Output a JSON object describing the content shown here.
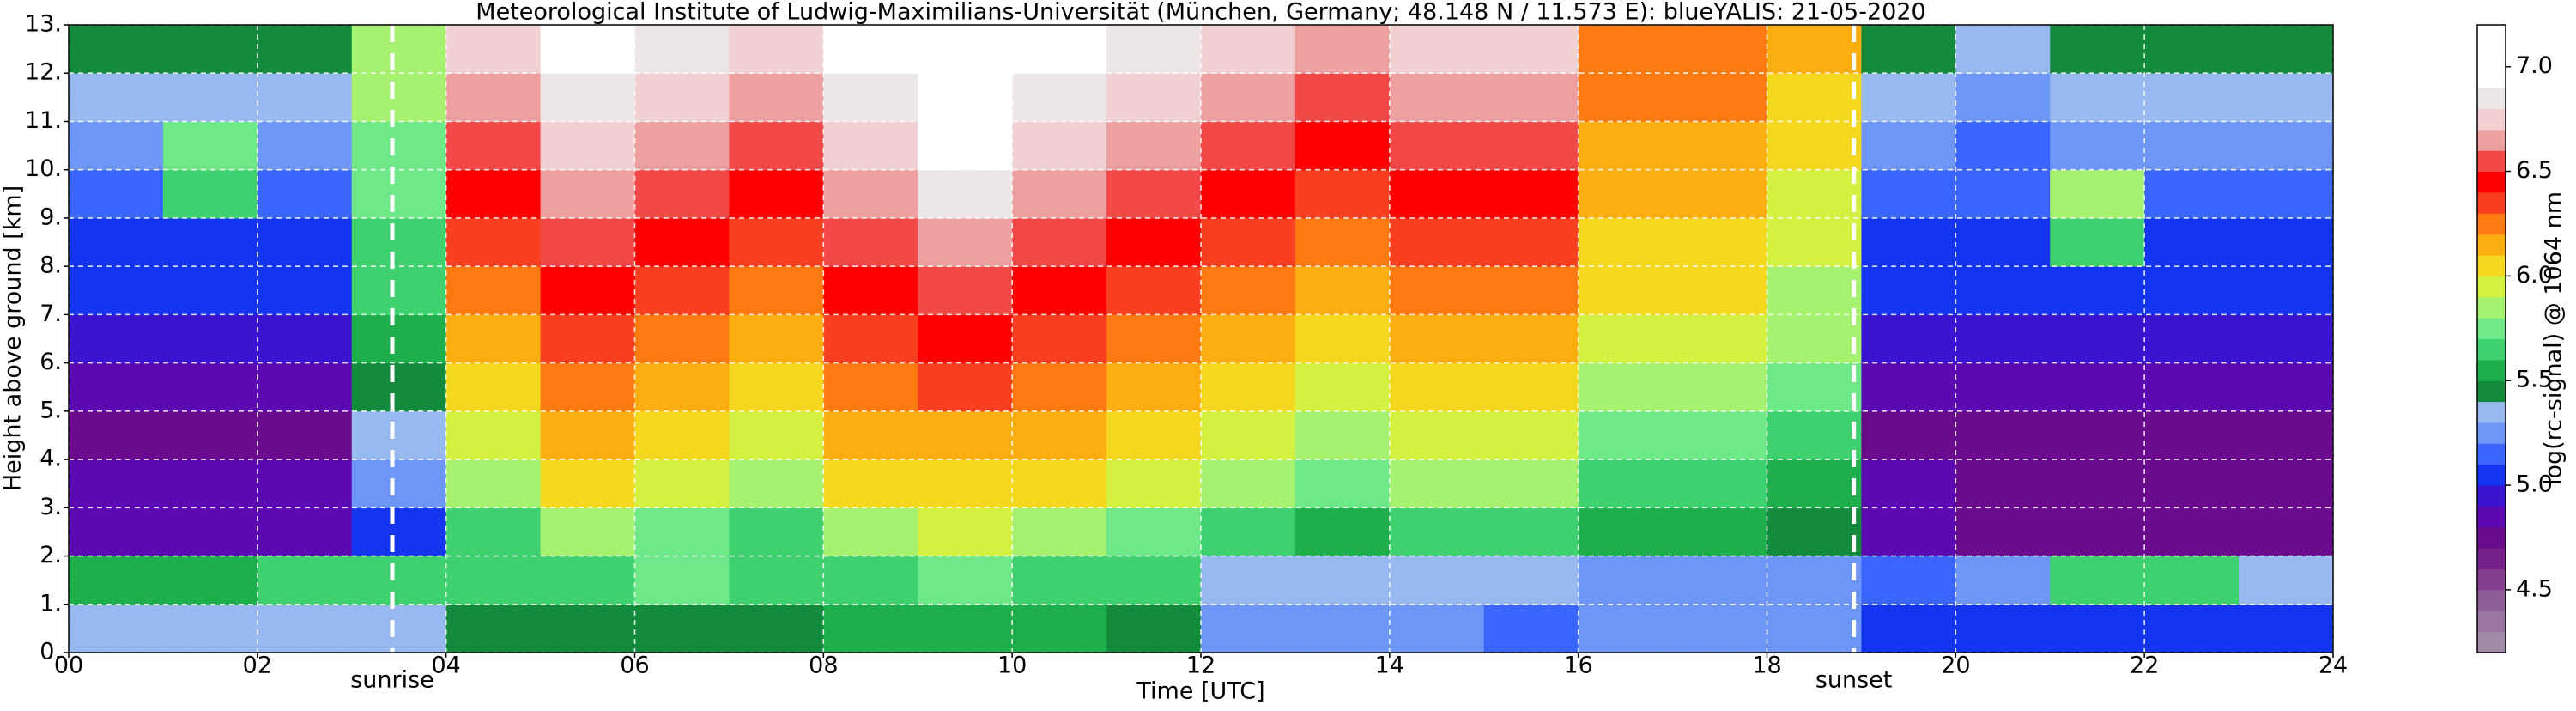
{
  "chart_data": {
    "type": "heatmap",
    "title": "Meteorological Institute of Ludwig-Maximilians-Universität (München, Germany; 48.148 N / 11.573 E):    blueYALIS: 21-05-2020",
    "xlabel": "Time [UTC]",
    "ylabel": "Height above ground [km]",
    "colorbar_label": "log(rc-signal) @ 1064 nm",
    "xbins": [
      0,
      1,
      2,
      3,
      4,
      5,
      6,
      7,
      8,
      9,
      10,
      11,
      12,
      13,
      14,
      15,
      16,
      17,
      18,
      19,
      20,
      21,
      22,
      23,
      24
    ],
    "ybins": [
      0,
      1,
      2,
      3,
      4,
      5,
      6,
      7,
      8,
      9,
      10,
      11,
      12,
      13
    ],
    "values": [
      [
        5.3,
        5.3,
        5.3,
        5.3,
        5.4,
        5.4,
        5.4,
        5.4,
        5.5,
        5.5,
        5.5,
        5.4,
        5.2,
        5.2,
        5.2,
        5.1,
        5.2,
        5.2,
        5.2,
        5.0,
        5.0,
        5.0,
        5.0,
        5.0
      ],
      [
        5.5,
        5.5,
        5.6,
        5.6,
        5.6,
        5.6,
        5.7,
        5.6,
        5.6,
        5.7,
        5.6,
        5.6,
        5.3,
        5.3,
        5.3,
        5.3,
        5.2,
        5.2,
        5.2,
        5.1,
        5.2,
        5.6,
        5.6,
        5.3
      ],
      [
        4.8,
        4.8,
        4.8,
        5.0,
        5.6,
        5.8,
        5.7,
        5.6,
        5.8,
        5.9,
        5.8,
        5.7,
        5.6,
        5.5,
        5.6,
        5.6,
        5.5,
        5.5,
        5.4,
        4.8,
        4.7,
        4.7,
        4.7,
        4.7
      ],
      [
        4.8,
        4.8,
        4.8,
        5.2,
        5.8,
        6.0,
        5.9,
        5.8,
        6.0,
        6.0,
        6.0,
        5.9,
        5.8,
        5.7,
        5.8,
        5.8,
        5.6,
        5.6,
        5.5,
        4.8,
        4.7,
        4.7,
        4.7,
        4.7
      ],
      [
        4.7,
        4.7,
        4.7,
        5.3,
        5.9,
        6.1,
        6.0,
        5.9,
        6.1,
        6.1,
        6.1,
        6.0,
        5.9,
        5.8,
        5.9,
        5.9,
        5.7,
        5.7,
        5.6,
        4.7,
        4.7,
        4.7,
        4.7,
        4.7
      ],
      [
        4.8,
        4.8,
        4.8,
        5.4,
        6.0,
        6.2,
        6.1,
        6.0,
        6.2,
        6.3,
        6.2,
        6.1,
        6.0,
        5.9,
        6.0,
        6.0,
        5.8,
        5.8,
        5.7,
        4.8,
        4.8,
        4.8,
        4.8,
        4.8
      ],
      [
        4.9,
        4.9,
        4.9,
        5.5,
        6.1,
        6.3,
        6.2,
        6.1,
        6.3,
        6.4,
        6.3,
        6.2,
        6.1,
        6.0,
        6.1,
        6.1,
        5.9,
        5.9,
        5.8,
        4.9,
        4.9,
        4.9,
        4.9,
        4.9
      ],
      [
        5.0,
        5.0,
        5.0,
        5.6,
        6.2,
        6.4,
        6.3,
        6.2,
        6.4,
        6.5,
        6.4,
        6.3,
        6.2,
        6.1,
        6.2,
        6.2,
        6.0,
        6.0,
        5.8,
        5.0,
        5.0,
        5.0,
        5.0,
        5.0
      ],
      [
        5.0,
        5.0,
        5.0,
        5.6,
        6.3,
        6.5,
        6.4,
        6.3,
        6.5,
        6.6,
        6.5,
        6.4,
        6.3,
        6.2,
        6.3,
        6.3,
        6.0,
        6.0,
        5.9,
        5.0,
        5.0,
        5.6,
        5.0,
        5.0
      ],
      [
        5.1,
        5.6,
        5.1,
        5.7,
        6.4,
        6.6,
        6.5,
        6.4,
        6.6,
        6.8,
        6.6,
        6.5,
        6.4,
        6.3,
        6.4,
        6.4,
        6.1,
        6.1,
        5.9,
        5.1,
        5.1,
        5.8,
        5.1,
        5.1
      ],
      [
        5.2,
        5.7,
        5.2,
        5.7,
        6.5,
        6.7,
        6.6,
        6.5,
        6.7,
        6.9,
        6.7,
        6.6,
        6.5,
        6.4,
        6.5,
        6.5,
        6.1,
        6.1,
        6.0,
        5.2,
        5.1,
        5.2,
        5.2,
        5.2
      ],
      [
        5.3,
        5.3,
        5.3,
        5.8,
        6.6,
        6.8,
        6.7,
        6.6,
        6.8,
        7.0,
        6.8,
        6.7,
        6.6,
        6.5,
        6.6,
        6.6,
        6.2,
        6.2,
        6.0,
        5.3,
        5.2,
        5.3,
        5.3,
        5.3
      ],
      [
        5.4,
        5.4,
        5.4,
        5.8,
        6.7,
        6.9,
        6.8,
        6.7,
        6.9,
        7.1,
        6.9,
        6.8,
        6.7,
        6.6,
        6.7,
        6.7,
        6.2,
        6.2,
        6.1,
        5.4,
        5.3,
        5.4,
        5.4,
        5.4
      ]
    ],
    "xlim": [
      0,
      24
    ],
    "ylim": [
      0,
      13
    ],
    "xticks": [
      {
        "value": 0,
        "label": "00"
      },
      {
        "value": 2,
        "label": "02"
      },
      {
        "value": 4,
        "label": "04"
      },
      {
        "value": 6,
        "label": "06"
      },
      {
        "value": 8,
        "label": "08"
      },
      {
        "value": 10,
        "label": "10"
      },
      {
        "value": 12,
        "label": "12"
      },
      {
        "value": 14,
        "label": "14"
      },
      {
        "value": 16,
        "label": "16"
      },
      {
        "value": 18,
        "label": "18"
      },
      {
        "value": 20,
        "label": "20"
      },
      {
        "value": 22,
        "label": "22"
      },
      {
        "value": 24,
        "label": "24"
      }
    ],
    "yticks": [
      {
        "value": 0,
        "label": "0."
      },
      {
        "value": 1,
        "label": "1."
      },
      {
        "value": 2,
        "label": "2."
      },
      {
        "value": 3,
        "label": "3."
      },
      {
        "value": 4,
        "label": "4."
      },
      {
        "value": 5,
        "label": "5."
      },
      {
        "value": 6,
        "label": "6."
      },
      {
        "value": 7,
        "label": "7."
      },
      {
        "value": 8,
        "label": "8."
      },
      {
        "value": 9,
        "label": "9."
      },
      {
        "value": 10,
        "label": "10."
      },
      {
        "value": 11,
        "label": "11."
      },
      {
        "value": 12,
        "label": "12."
      },
      {
        "value": 13,
        "label": "13."
      }
    ],
    "zlim": [
      4.2,
      7.2
    ],
    "zticks": [
      4.5,
      {
        "value": 5,
        "label": "5.0"
      },
      5.5,
      {
        "value": 6,
        "label": "6.0"
      },
      6.5,
      {
        "value": 7,
        "label": "7.0"
      }
    ],
    "colormap": [
      "#a08aa6",
      "#9a77a0",
      "#8f5d98",
      "#84408f",
      "#78208a",
      "#6a0a8c",
      "#5a0ab0",
      "#3a14d0",
      "#1434f0",
      "#3a66ff",
      "#6e96f6",
      "#98b8f0",
      "#148a3c",
      "#1fae4c",
      "#3fd070",
      "#6ee888",
      "#a6f270",
      "#d4f040",
      "#f4d820",
      "#fcae10",
      "#fc7a10",
      "#f84020",
      "#ff0000",
      "#f24848",
      "#eea0a0",
      "#f0d0d0",
      "#ede6e6",
      "#ffffff",
      "#ffffff",
      "#ffffff"
    ],
    "grid": true,
    "annotations": [
      {
        "x": 3.43,
        "label": "sunrise"
      },
      {
        "x": 18.92,
        "label": "sunset"
      }
    ]
  }
}
